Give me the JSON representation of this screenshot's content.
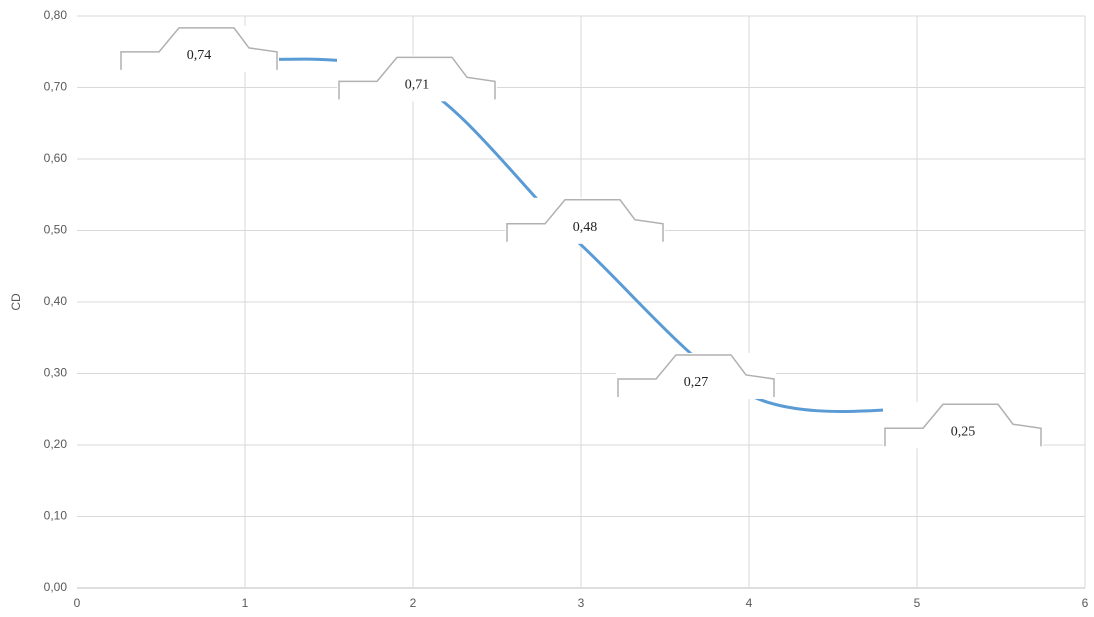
{
  "chart_data": {
    "type": "line",
    "y_label": "CD",
    "x": [
      1,
      2,
      3,
      4,
      5
    ],
    "series": [
      {
        "color": "#5b9bd5",
        "values": [
          0.74,
          0.71,
          0.48,
          0.27,
          0.25
        ],
        "value_labels": [
          "0,74",
          "0,71",
          "0,48",
          "0,27",
          "0,25"
        ]
      }
    ],
    "xlim": [
      0,
      6
    ],
    "xticks": [
      0,
      1,
      2,
      3,
      4,
      5,
      6
    ],
    "ylim": [
      0,
      0.8
    ],
    "yticks": [
      {
        "value": 0,
        "label": "0,00"
      },
      {
        "value": 0.1,
        "label": "0,10"
      },
      {
        "value": 0.2,
        "label": "0,20"
      },
      {
        "value": 0.3,
        "label": "0,30"
      },
      {
        "value": 0.4,
        "label": "0,40"
      },
      {
        "value": 0.5,
        "label": "0,50"
      },
      {
        "value": 0.6,
        "label": "0,60"
      },
      {
        "value": 0.7,
        "label": "0,70"
      },
      {
        "value": 0.8,
        "label": "0,80"
      }
    ],
    "grid": true
  }
}
